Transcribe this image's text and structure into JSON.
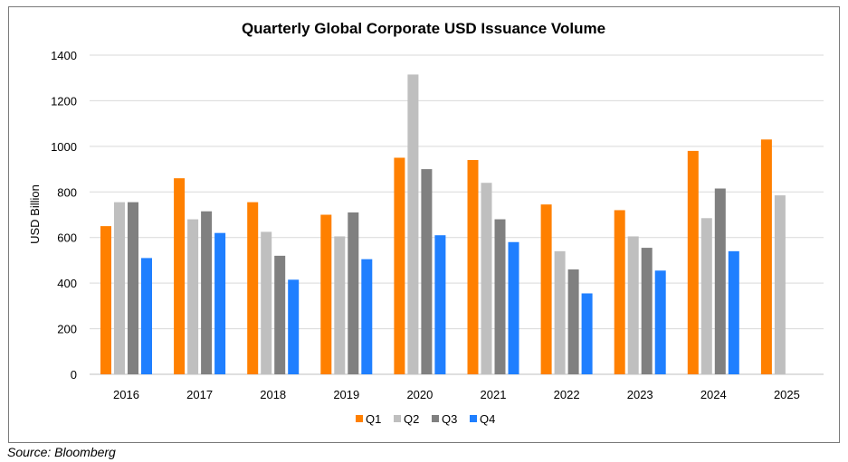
{
  "source_note": "Source: Bloomberg",
  "chart_data": {
    "type": "bar",
    "title": "Quarterly Global Corporate USD Issuance Volume",
    "xlabel": "",
    "ylabel": "USD Billion",
    "ylim": [
      0,
      1400
    ],
    "yticks": [
      0,
      200,
      400,
      600,
      800,
      1000,
      1200,
      1400
    ],
    "grid": true,
    "legend_position": "bottom",
    "categories": [
      "2016",
      "2017",
      "2018",
      "2019",
      "2020",
      "2021",
      "2022",
      "2023",
      "2024",
      "2025"
    ],
    "series": [
      {
        "name": "Q1",
        "color": "#ff8000",
        "values": [
          650,
          860,
          755,
          700,
          950,
          940,
          745,
          720,
          980,
          1030
        ]
      },
      {
        "name": "Q2",
        "color": "#bfbfbf",
        "values": [
          755,
          680,
          625,
          605,
          1315,
          840,
          540,
          605,
          685,
          785
        ]
      },
      {
        "name": "Q3",
        "color": "#808080",
        "values": [
          755,
          715,
          520,
          710,
          900,
          680,
          460,
          555,
          815,
          null
        ]
      },
      {
        "name": "Q4",
        "color": "#1f7fff",
        "values": [
          510,
          620,
          415,
          505,
          610,
          580,
          355,
          455,
          540,
          null
        ]
      }
    ]
  }
}
